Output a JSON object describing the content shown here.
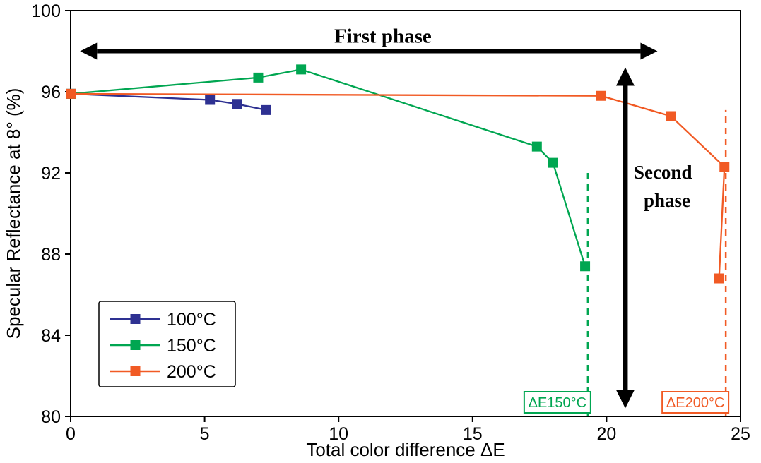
{
  "chart_data": {
    "type": "line",
    "title": "",
    "xlabel": "Total color difference ΔE",
    "ylabel": "Specular Reflectance at 8° (%)",
    "xlim": [
      0,
      25
    ],
    "ylim": [
      80,
      100
    ],
    "xticks": [
      0,
      5,
      10,
      15,
      20,
      25
    ],
    "yticks": [
      80,
      84,
      88,
      92,
      96,
      100
    ],
    "grid": false,
    "legend_position": "lower-left-inside",
    "axis_color": "#000000",
    "series": [
      {
        "name": "100°C",
        "color": "#2E3192",
        "points": [
          [
            0,
            95.9
          ],
          [
            5.2,
            95.6
          ],
          [
            6.2,
            95.4
          ],
          [
            7.3,
            95.1
          ]
        ]
      },
      {
        "name": "150°C",
        "color": "#00A651",
        "points": [
          [
            0,
            95.9
          ],
          [
            7.0,
            96.7
          ],
          [
            8.6,
            97.1
          ],
          [
            17.4,
            93.3
          ],
          [
            18.0,
            92.5
          ],
          [
            19.2,
            87.4
          ]
        ]
      },
      {
        "name": "200°C",
        "color": "#F15A24",
        "points": [
          [
            0,
            95.9
          ],
          [
            19.8,
            95.8
          ],
          [
            22.4,
            94.8
          ],
          [
            24.4,
            92.3
          ],
          [
            24.2,
            86.8
          ]
        ]
      }
    ],
    "reference_lines": [
      {
        "x": 19.3,
        "y_from": 80,
        "y_to": 92.2,
        "color": "#00A651",
        "style": "dashed",
        "label": "ΔE150°C"
      },
      {
        "x": 24.45,
        "y_from": 80,
        "y_to": 95.1,
        "color": "#F15A24",
        "style": "dashed",
        "label": "ΔE200°C"
      }
    ],
    "annotations": [
      {
        "type": "h-double-arrow",
        "text": "First phase",
        "x_from": 0.35,
        "x_to": 21.9,
        "y": 98.0
      },
      {
        "type": "v-double-arrow",
        "text": "Second phase",
        "x": 20.7,
        "y_from": 80.4,
        "y_to": 97.2
      }
    ]
  }
}
